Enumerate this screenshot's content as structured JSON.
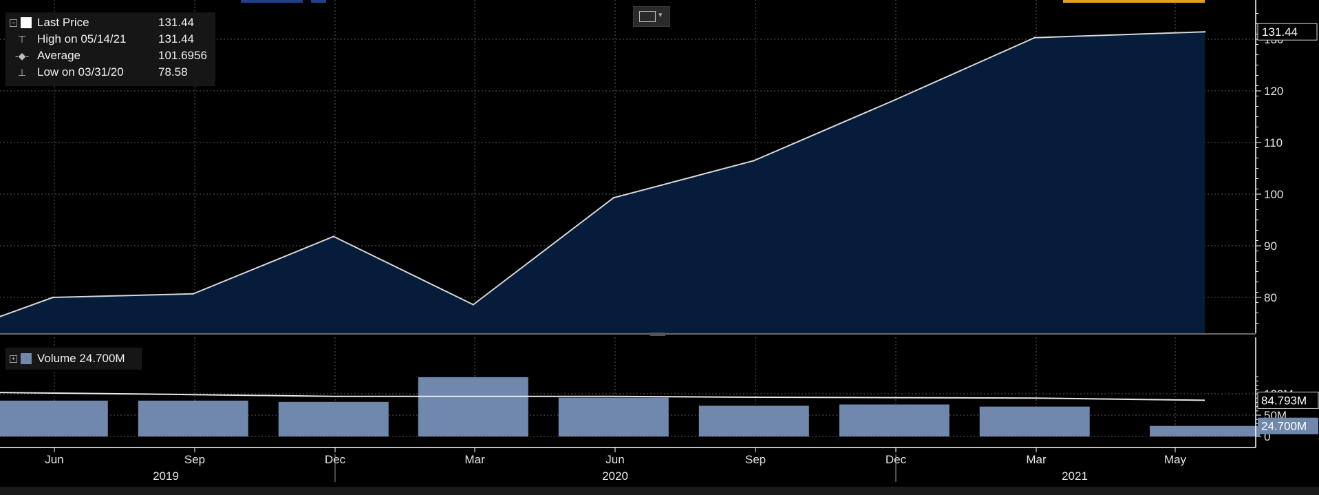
{
  "legend": {
    "rows": [
      {
        "label": "Last Price",
        "value": "131.44"
      },
      {
        "label": "High on 05/14/21",
        "value": "131.44"
      },
      {
        "label": "Average",
        "value": "101.6956"
      },
      {
        "label": "Low on 03/31/20",
        "value": "78.58"
      }
    ],
    "volume_label": "Volume 24.700M"
  },
  "colors": {
    "background": "#000000",
    "area_fill": "#051c3a",
    "price_line": "#d8d8d8",
    "volume_bar": "#7188ad",
    "grid": "#5a5a5a",
    "axis": "#ffffff"
  },
  "chart_data": [
    {
      "type": "area",
      "series": [
        {
          "name": "Last Price",
          "x": [
            "2019-03-31",
            "2019-05-31",
            "2019-08-31",
            "2019-11-30",
            "2020-02-29",
            "2020-05-31",
            "2020-08-31",
            "2020-11-30",
            "2021-02-28",
            "2021-05-14"
          ],
          "values": [
            76.3,
            80.0,
            80.7,
            91.8,
            78.6,
            99.3,
            106.5,
            118.2,
            130.3,
            131.44
          ]
        }
      ],
      "ylim": [
        73,
        135
      ],
      "yticks": [
        80,
        90,
        100,
        110,
        120,
        130
      ],
      "current_value_label": "131.44",
      "grid": true
    },
    {
      "type": "bar",
      "series": [
        {
          "name": "Volume",
          "x": [
            "2019-05-31",
            "2019-08-31",
            "2019-11-30",
            "2020-02-29",
            "2020-05-31",
            "2020-08-31",
            "2020-11-30",
            "2021-02-28",
            "2021-05-14"
          ],
          "values": [
            84,
            84,
            81,
            139,
            91,
            72,
            75,
            70,
            24.7
          ]
        },
        {
          "name": "Average",
          "x": [
            "2019-03-31",
            "2019-08-31",
            "2019-11-30",
            "2020-02-29",
            "2020-05-31",
            "2020-08-31",
            "2020-11-30",
            "2021-02-28",
            "2021-05-14"
          ],
          "values": [
            103,
            98,
            94,
            94,
            94,
            92,
            91,
            90,
            84.793
          ]
        }
      ],
      "yticks": [
        0,
        50,
        100
      ],
      "ytick_labels": [
        "0",
        "50M",
        "100M"
      ],
      "ylim": [
        0,
        150
      ],
      "value_labels": [
        "84.793M",
        "24.700M"
      ],
      "grid": true
    }
  ],
  "x_axis": {
    "months": [
      "Jun",
      "Sep",
      "Dec",
      "Mar",
      "Jun",
      "Sep",
      "Dec",
      "Mar",
      "May"
    ],
    "years": [
      "2019",
      "2020",
      "2021"
    ]
  }
}
